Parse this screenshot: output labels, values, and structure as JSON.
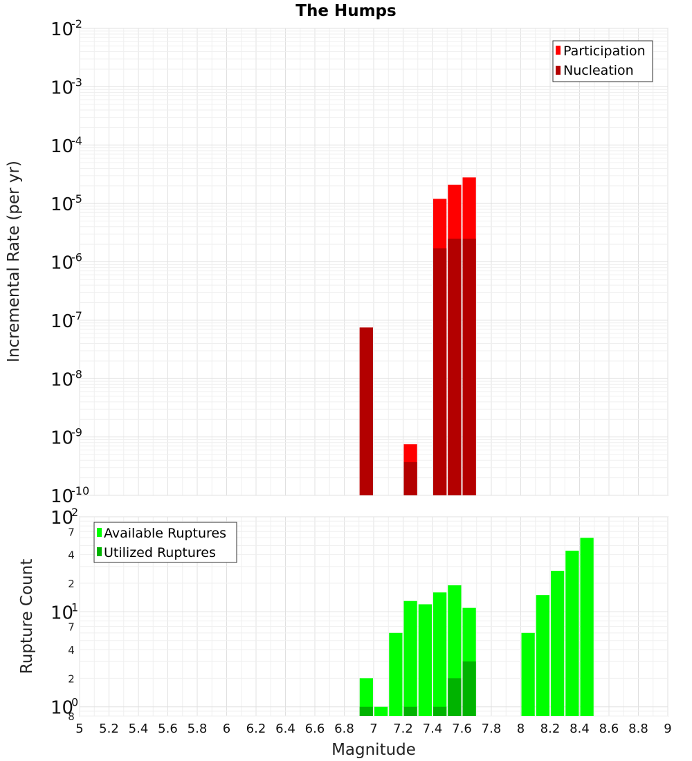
{
  "chart_data": [
    {
      "type": "bar",
      "title": "The Humps",
      "xlabel": "",
      "ylabel": "Incremental Rate (per yr)",
      "yscale": "log",
      "ylim": [
        1e-10,
        0.01
      ],
      "xlim": [
        5,
        9
      ],
      "grid": true,
      "bar_width": 0.1,
      "legend": {
        "placement": "top-right",
        "entries": [
          {
            "label": "Participation",
            "color": "#ff0000"
          },
          {
            "label": "Nucleation",
            "color": "#b30000"
          }
        ]
      },
      "series": [
        {
          "name": "Participation",
          "color": "#ff0000",
          "points": [
            {
              "x": 6.95,
              "y": 7.5e-08
            },
            {
              "x": 7.25,
              "y": 7.5e-10
            },
            {
              "x": 7.45,
              "y": 1.2e-05
            },
            {
              "x": 7.55,
              "y": 2.1e-05
            },
            {
              "x": 7.65,
              "y": 2.8e-05
            }
          ]
        },
        {
          "name": "Nucleation",
          "color": "#b30000",
          "points": [
            {
              "x": 6.95,
              "y": 7.5e-08
            },
            {
              "x": 7.25,
              "y": 3.7e-10
            },
            {
              "x": 7.45,
              "y": 1.7e-06
            },
            {
              "x": 7.55,
              "y": 2.5e-06
            },
            {
              "x": 7.65,
              "y": 2.5e-06
            }
          ]
        }
      ],
      "y_ticks": [
        {
          "base": "10",
          "exp": "-2"
        },
        {
          "base": "10",
          "exp": "-3"
        },
        {
          "base": "10",
          "exp": "-4"
        },
        {
          "base": "10",
          "exp": "-5"
        },
        {
          "base": "10",
          "exp": "-6"
        },
        {
          "base": "10",
          "exp": "-7"
        },
        {
          "base": "10",
          "exp": "-8"
        },
        {
          "base": "10",
          "exp": "-9"
        },
        {
          "base": "10",
          "exp": "-10"
        }
      ]
    },
    {
      "type": "bar",
      "title": "",
      "xlabel": "Magnitude",
      "ylabel": "Rupture Count",
      "yscale": "log",
      "ylim": [
        0.8,
        100
      ],
      "xlim": [
        5,
        9
      ],
      "grid": true,
      "bar_width": 0.1,
      "legend": {
        "placement": "top-left",
        "entries": [
          {
            "label": "Available Ruptures",
            "color": "#00ff00"
          },
          {
            "label": "Utilized Ruptures",
            "color": "#00b300"
          }
        ]
      },
      "series": [
        {
          "name": "Available Ruptures",
          "color": "#00ff00",
          "points": [
            {
              "x": 6.95,
              "y": 2
            },
            {
              "x": 7.05,
              "y": 1
            },
            {
              "x": 7.15,
              "y": 6
            },
            {
              "x": 7.25,
              "y": 13
            },
            {
              "x": 7.35,
              "y": 12
            },
            {
              "x": 7.45,
              "y": 16
            },
            {
              "x": 7.55,
              "y": 19
            },
            {
              "x": 7.65,
              "y": 11
            },
            {
              "x": 8.05,
              "y": 6
            },
            {
              "x": 8.15,
              "y": 15
            },
            {
              "x": 8.25,
              "y": 27
            },
            {
              "x": 8.35,
              "y": 44
            },
            {
              "x": 8.45,
              "y": 60
            }
          ]
        },
        {
          "name": "Utilized Ruptures",
          "color": "#00b300",
          "points": [
            {
              "x": 6.95,
              "y": 1
            },
            {
              "x": 7.25,
              "y": 1
            },
            {
              "x": 7.45,
              "y": 1
            },
            {
              "x": 7.55,
              "y": 2
            },
            {
              "x": 7.65,
              "y": 3
            }
          ]
        }
      ],
      "y_ticks": [
        {
          "base": "10",
          "exp": "2"
        },
        {
          "base": "",
          "exp": "",
          "minor": "7"
        },
        {
          "base": "",
          "exp": "",
          "minor": "4"
        },
        {
          "base": "",
          "exp": "",
          "minor": "2"
        },
        {
          "base": "10",
          "exp": "1"
        },
        {
          "base": "",
          "exp": "",
          "minor": "7"
        },
        {
          "base": "",
          "exp": "",
          "minor": "4"
        },
        {
          "base": "",
          "exp": "",
          "minor": "2"
        },
        {
          "base": "10",
          "exp": "0"
        },
        {
          "base": "",
          "exp": "",
          "minor": "8"
        }
      ],
      "x_ticks": [
        "5",
        "5.2",
        "5.4",
        "5.6",
        "5.8",
        "6",
        "6.2",
        "6.4",
        "6.6",
        "6.8",
        "7",
        "7.2",
        "7.4",
        "7.6",
        "7.8",
        "8",
        "8.2",
        "8.4",
        "8.6",
        "8.8",
        "9"
      ]
    }
  ]
}
